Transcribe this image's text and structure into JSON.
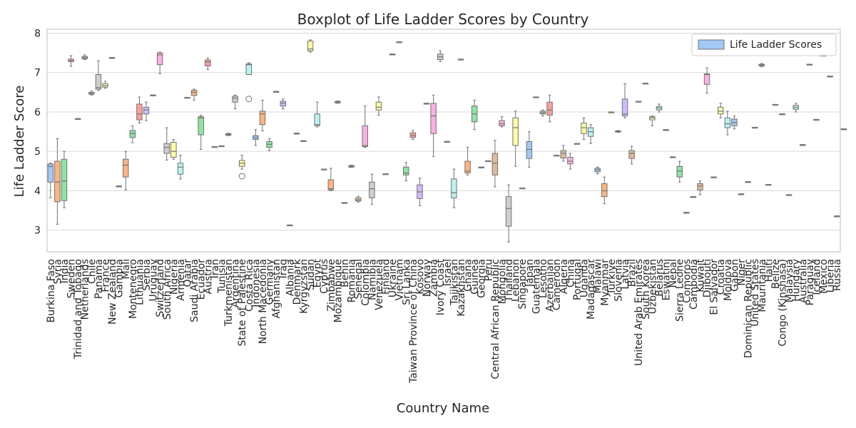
{
  "chart_data": {
    "type": "boxplot",
    "title": "Boxplot of Life Ladder Scores by Country",
    "xlabel": "Country Name",
    "ylabel": "Life Ladder Score",
    "ylim": [
      2.45,
      8.1
    ],
    "yticks": [
      3,
      4,
      5,
      6,
      7,
      8
    ],
    "grid": true,
    "legend": {
      "label": "Life Ladder Scores",
      "position": "top-right"
    },
    "palette": [
      "#a1c9f4",
      "#ffb482",
      "#8de5a1",
      "#ff9f9b",
      "#d0bbff",
      "#debb9b",
      "#fab0e4",
      "#cfcfcf",
      "#fffea3",
      "#b9f2f0"
    ],
    "edge_color": "#737373",
    "categories": [
      "Burkina Faso",
      "Syria",
      "India",
      "Sweden",
      "Trinidad and Tobago",
      "Netherlands",
      "Chile",
      "Panama",
      "France",
      "New Zealand",
      "Gambia",
      "Mali",
      "Montenegro",
      "Lithuania",
      "Serbia",
      "Uruguay",
      "Switzerland",
      "South Africa",
      "Nigeria",
      "Armenia",
      "Qatar",
      "Saudi Arabia",
      "Ecuador",
      "Austria",
      "Iran",
      "Tunisia",
      "Turkmenistan",
      "Argentina",
      "State of Palestine",
      "Costa Rica",
      "Indonesia",
      "North Macedonia",
      "Germany",
      "Afghanistan",
      "Iraq",
      "Albania",
      "Denmark",
      "Kyrgyzstan",
      "Sudan",
      "Egypt",
      "Cyprus",
      "Zimbabwe",
      "Mozambique",
      "Benin",
      "Romania",
      "Senegal",
      "Colombia",
      "Namibia",
      "Venezuela",
      "Finland",
      "Ukraine",
      "Vietnam",
      "Sri Lanka",
      "Taiwan Province of China",
      "Kosovo",
      "Norway",
      "Zambia",
      "Ivory Coast",
      "Israel",
      "Tajikistan",
      "Kazakhstan",
      "Ghana",
      "Guinea",
      "Georgia",
      "Peru",
      "Central African Republic",
      "Mongolia",
      "Thailand",
      "Lebanon",
      "Singapore",
      "Japan",
      "Guatemala",
      "Lesotho",
      "Azerbaijan",
      "Cameroon",
      "Algeria",
      "China",
      "Portugal",
      "Uganda",
      "Madagascar",
      "Malawi",
      "Myanmar",
      "Türkiye",
      "Slovenia",
      "Latvia",
      "Brazil",
      "United Arab Emirates",
      "South Korea",
      "Uzbekistan",
      "Belarus",
      "Eswatini",
      "Nepal",
      "Sierra Leone",
      "Comoros",
      "Cambodia",
      "Kuwait",
      "Djibouti",
      "El Salvador",
      "Croatia",
      "Moldova",
      "Gabon",
      "Niger",
      "Dominican Republic",
      "United States",
      "Mauritania",
      "Haiti",
      "Belize",
      "Congo (Kinshasa)",
      "Malaysia",
      "Hungary",
      "Australia",
      "Paraguay",
      "Iceland",
      "Mexico",
      "Liberia",
      "Russia"
    ],
    "boxes": [
      {
        "q1": 4.22,
        "med": 4.62,
        "q3": 4.68,
        "wlo": 3.82,
        "whi": 4.7,
        "outliers": []
      },
      {
        "q1": 3.72,
        "med": 4.22,
        "q3": 4.75,
        "wlo": 3.15,
        "whi": 5.32,
        "outliers": []
      },
      {
        "q1": 3.75,
        "med": 4.25,
        "q3": 4.8,
        "wlo": 3.57,
        "whi": 5.0,
        "outliers": []
      },
      {
        "q1": 7.28,
        "med": 7.3,
        "q3": 7.34,
        "wlo": 7.16,
        "whi": 7.43,
        "outliers": []
      },
      {
        "q1": 5.83,
        "med": 5.83,
        "q3": 5.83,
        "wlo": 5.83,
        "whi": 5.83,
        "outliers": []
      },
      {
        "q1": 7.35,
        "med": 7.38,
        "q3": 7.41,
        "wlo": 7.33,
        "whi": 7.45,
        "outliers": []
      },
      {
        "q1": 6.45,
        "med": 6.47,
        "q3": 6.5,
        "wlo": 6.43,
        "whi": 6.53,
        "outliers": []
      },
      {
        "q1": 6.58,
        "med": 6.62,
        "q3": 6.95,
        "wlo": 6.55,
        "whi": 7.3,
        "outliers": []
      },
      {
        "q1": 6.63,
        "med": 6.67,
        "q3": 6.72,
        "wlo": 6.6,
        "whi": 6.78,
        "outliers": []
      },
      {
        "q1": 7.38,
        "med": 7.38,
        "q3": 7.38,
        "wlo": 7.38,
        "whi": 7.38,
        "outliers": []
      },
      {
        "q1": 4.12,
        "med": 4.12,
        "q3": 4.12,
        "wlo": 4.12,
        "whi": 4.12,
        "outliers": []
      },
      {
        "q1": 4.35,
        "med": 4.65,
        "q3": 4.8,
        "wlo": 4.02,
        "whi": 5.0,
        "outliers": []
      },
      {
        "q1": 5.35,
        "med": 5.45,
        "q3": 5.53,
        "wlo": 5.22,
        "whi": 5.65,
        "outliers": []
      },
      {
        "q1": 5.8,
        "med": 5.95,
        "q3": 6.2,
        "wlo": 5.72,
        "whi": 6.38,
        "outliers": []
      },
      {
        "q1": 5.95,
        "med": 6.05,
        "q3": 6.12,
        "wlo": 5.78,
        "whi": 6.25,
        "outliers": []
      },
      {
        "q1": 6.43,
        "med": 6.43,
        "q3": 6.43,
        "wlo": 6.43,
        "whi": 6.43,
        "outliers": []
      },
      {
        "q1": 7.2,
        "med": 7.45,
        "q3": 7.5,
        "wlo": 6.97,
        "whi": 7.52,
        "outliers": []
      },
      {
        "q1": 4.95,
        "med": 5.1,
        "q3": 5.2,
        "wlo": 4.78,
        "whi": 5.6,
        "outliers": []
      },
      {
        "q1": 4.85,
        "med": 5.0,
        "q3": 5.23,
        "wlo": 4.8,
        "whi": 5.3,
        "outliers": []
      },
      {
        "q1": 4.42,
        "med": 4.6,
        "q3": 4.7,
        "wlo": 4.3,
        "whi": 4.9,
        "outliers": []
      },
      {
        "q1": 6.37,
        "med": 6.37,
        "q3": 6.37,
        "wlo": 6.37,
        "whi": 6.37,
        "outliers": []
      },
      {
        "q1": 6.42,
        "med": 6.5,
        "q3": 6.55,
        "wlo": 6.3,
        "whi": 6.58,
        "outliers": []
      },
      {
        "q1": 5.42,
        "med": 5.85,
        "q3": 5.88,
        "wlo": 5.05,
        "whi": 5.92,
        "outliers": []
      },
      {
        "q1": 7.17,
        "med": 7.27,
        "q3": 7.32,
        "wlo": 7.08,
        "whi": 7.37,
        "outliers": []
      },
      {
        "q1": 5.12,
        "med": 5.12,
        "q3": 5.12,
        "wlo": 5.12,
        "whi": 5.12,
        "outliers": []
      },
      {
        "q1": 5.14,
        "med": 5.14,
        "q3": 5.14,
        "wlo": 5.14,
        "whi": 5.14,
        "outliers": []
      },
      {
        "q1": 5.41,
        "med": 5.43,
        "q3": 5.45,
        "wlo": 5.4,
        "whi": 5.46,
        "outliers": []
      },
      {
        "q1": 6.25,
        "med": 6.35,
        "q3": 6.4,
        "wlo": 6.08,
        "whi": 6.43,
        "outliers": []
      },
      {
        "q1": 4.62,
        "med": 4.7,
        "q3": 4.77,
        "wlo": 4.55,
        "whi": 4.9,
        "outliers": [
          4.37
        ]
      },
      {
        "q1": 6.95,
        "med": 7.2,
        "q3": 7.22,
        "wlo": 6.95,
        "whi": 7.25,
        "outliers": [
          6.33
        ]
      },
      {
        "q1": 5.3,
        "med": 5.35,
        "q3": 5.4,
        "wlo": 5.15,
        "whi": 5.55,
        "outliers": []
      },
      {
        "q1": 5.68,
        "med": 5.95,
        "q3": 6.02,
        "wlo": 5.52,
        "whi": 6.3,
        "outliers": []
      },
      {
        "q1": 5.1,
        "med": 5.18,
        "q3": 5.25,
        "wlo": 5.02,
        "whi": 5.32,
        "outliers": []
      },
      {
        "q1": 6.52,
        "med": 6.52,
        "q3": 6.52,
        "wlo": 6.52,
        "whi": 6.52,
        "outliers": []
      },
      {
        "q1": 6.15,
        "med": 6.22,
        "q3": 6.27,
        "wlo": 6.08,
        "whi": 6.33,
        "outliers": []
      },
      {
        "q1": 3.13,
        "med": 3.13,
        "q3": 3.13,
        "wlo": 3.13,
        "whi": 3.13,
        "outliers": []
      },
      {
        "q1": 5.46,
        "med": 5.46,
        "q3": 5.46,
        "wlo": 5.46,
        "whi": 5.46,
        "outliers": []
      },
      {
        "q1": 5.27,
        "med": 5.27,
        "q3": 5.27,
        "wlo": 5.27,
        "whi": 5.27,
        "outliers": []
      },
      {
        "q1": 7.55,
        "med": 7.6,
        "q3": 7.8,
        "wlo": 7.52,
        "whi": 7.83,
        "outliers": []
      },
      {
        "q1": 5.65,
        "med": 5.68,
        "q3": 5.95,
        "wlo": 5.62,
        "whi": 6.25,
        "outliers": []
      },
      {
        "q1": 4.55,
        "med": 4.55,
        "q3": 4.55,
        "wlo": 4.55,
        "whi": 4.55,
        "outliers": []
      },
      {
        "q1": 4.02,
        "med": 4.05,
        "q3": 4.28,
        "wlo": 4.0,
        "whi": 4.57,
        "outliers": []
      },
      {
        "q1": 6.23,
        "med": 6.25,
        "q3": 6.27,
        "wlo": 6.22,
        "whi": 6.28,
        "outliers": []
      },
      {
        "q1": 3.7,
        "med": 3.7,
        "q3": 3.7,
        "wlo": 3.7,
        "whi": 3.7,
        "outliers": []
      },
      {
        "q1": 4.6,
        "med": 4.62,
        "q3": 4.64,
        "wlo": 4.59,
        "whi": 4.65,
        "outliers": []
      },
      {
        "q1": 3.74,
        "med": 3.77,
        "q3": 3.82,
        "wlo": 3.71,
        "whi": 3.86,
        "outliers": []
      },
      {
        "q1": 5.12,
        "med": 5.15,
        "q3": 5.65,
        "wlo": 5.1,
        "whi": 6.15,
        "outliers": []
      },
      {
        "q1": 3.82,
        "med": 4.05,
        "q3": 4.22,
        "wlo": 3.65,
        "whi": 4.42,
        "outliers": []
      },
      {
        "q1": 6.05,
        "med": 6.12,
        "q3": 6.25,
        "wlo": 5.92,
        "whi": 6.38,
        "outliers": []
      },
      {
        "q1": 4.43,
        "med": 4.43,
        "q3": 4.43,
        "wlo": 4.43,
        "whi": 4.43,
        "outliers": []
      },
      {
        "q1": 7.47,
        "med": 7.47,
        "q3": 7.47,
        "wlo": 7.47,
        "whi": 7.47,
        "outliers": []
      },
      {
        "q1": 7.78,
        "med": 7.78,
        "q3": 7.78,
        "wlo": 7.78,
        "whi": 7.78,
        "outliers": []
      },
      {
        "q1": 4.4,
        "med": 4.45,
        "q3": 4.6,
        "wlo": 4.25,
        "whi": 4.72,
        "outliers": []
      },
      {
        "q1": 5.35,
        "med": 5.4,
        "q3": 5.47,
        "wlo": 5.3,
        "whi": 5.53,
        "outliers": []
      },
      {
        "q1": 3.8,
        "med": 3.97,
        "q3": 4.15,
        "wlo": 3.62,
        "whi": 4.32,
        "outliers": []
      },
      {
        "q1": 6.22,
        "med": 6.22,
        "q3": 6.22,
        "wlo": 6.22,
        "whi": 6.22,
        "outliers": []
      },
      {
        "q1": 5.45,
        "med": 5.9,
        "q3": 6.22,
        "wlo": 4.87,
        "whi": 6.43,
        "outliers": []
      },
      {
        "q1": 7.33,
        "med": 7.4,
        "q3": 7.47,
        "wlo": 7.28,
        "whi": 7.55,
        "outliers": []
      },
      {
        "q1": 5.25,
        "med": 5.25,
        "q3": 5.25,
        "wlo": 5.25,
        "whi": 5.25,
        "outliers": []
      },
      {
        "q1": 3.82,
        "med": 3.95,
        "q3": 4.3,
        "wlo": 3.57,
        "whi": 4.55,
        "outliers": []
      },
      {
        "q1": 7.34,
        "med": 7.34,
        "q3": 7.34,
        "wlo": 7.34,
        "whi": 7.34,
        "outliers": []
      },
      {
        "q1": 4.45,
        "med": 4.5,
        "q3": 4.75,
        "wlo": 4.4,
        "whi": 5.1,
        "outliers": []
      },
      {
        "q1": 5.75,
        "med": 5.95,
        "q3": 6.15,
        "wlo": 5.55,
        "whi": 6.3,
        "outliers": []
      },
      {
        "q1": 4.6,
        "med": 4.6,
        "q3": 4.6,
        "wlo": 4.6,
        "whi": 4.6,
        "outliers": []
      },
      {
        "q1": 4.76,
        "med": 4.76,
        "q3": 4.76,
        "wlo": 4.76,
        "whi": 4.76,
        "outliers": []
      },
      {
        "q1": 4.4,
        "med": 4.7,
        "q3": 4.95,
        "wlo": 4.1,
        "whi": 5.28,
        "outliers": []
      },
      {
        "q1": 5.65,
        "med": 5.7,
        "q3": 5.78,
        "wlo": 5.62,
        "whi": 5.88,
        "outliers": []
      },
      {
        "q1": 3.1,
        "med": 3.55,
        "q3": 3.85,
        "wlo": 2.7,
        "whi": 4.15,
        "outliers": []
      },
      {
        "q1": 5.15,
        "med": 5.6,
        "q3": 5.85,
        "wlo": 4.62,
        "whi": 6.02,
        "outliers": []
      },
      {
        "q1": 4.07,
        "med": 4.07,
        "q3": 4.07,
        "wlo": 4.07,
        "whi": 4.07,
        "outliers": []
      },
      {
        "q1": 4.82,
        "med": 5.05,
        "q3": 5.25,
        "wlo": 4.6,
        "whi": 5.5,
        "outliers": []
      },
      {
        "q1": 6.38,
        "med": 6.38,
        "q3": 6.38,
        "wlo": 6.38,
        "whi": 6.38,
        "outliers": []
      },
      {
        "q1": 5.95,
        "med": 5.98,
        "q3": 6.02,
        "wlo": 5.9,
        "whi": 6.05,
        "outliers": []
      },
      {
        "q1": 5.92,
        "med": 6.05,
        "q3": 6.25,
        "wlo": 5.75,
        "whi": 6.43,
        "outliers": []
      },
      {
        "q1": 4.9,
        "med": 4.9,
        "q3": 4.9,
        "wlo": 4.9,
        "whi": 4.9,
        "outliers": []
      },
      {
        "q1": 4.83,
        "med": 4.95,
        "q3": 5.02,
        "wlo": 4.75,
        "whi": 5.15,
        "outliers": []
      },
      {
        "q1": 4.68,
        "med": 4.75,
        "q3": 4.85,
        "wlo": 4.55,
        "whi": 4.95,
        "outliers": []
      },
      {
        "q1": 5.2,
        "med": 5.2,
        "q3": 5.2,
        "wlo": 5.2,
        "whi": 5.2,
        "outliers": []
      },
      {
        "q1": 5.45,
        "med": 5.6,
        "q3": 5.72,
        "wlo": 5.3,
        "whi": 5.85,
        "outliers": []
      },
      {
        "q1": 5.38,
        "med": 5.5,
        "q3": 5.6,
        "wlo": 5.2,
        "whi": 5.68,
        "outliers": []
      },
      {
        "q1": 4.48,
        "med": 4.53,
        "q3": 4.57,
        "wlo": 4.43,
        "whi": 4.6,
        "outliers": []
      },
      {
        "q1": 3.85,
        "med": 4.0,
        "q3": 4.18,
        "wlo": 3.67,
        "whi": 4.35,
        "outliers": []
      },
      {
        "q1": 6.0,
        "med": 6.0,
        "q3": 6.0,
        "wlo": 6.0,
        "whi": 6.0,
        "outliers": []
      },
      {
        "q1": 5.49,
        "med": 5.5,
        "q3": 5.52,
        "wlo": 5.48,
        "whi": 5.53,
        "outliers": []
      },
      {
        "q1": 5.9,
        "med": 5.95,
        "q3": 6.33,
        "wlo": 5.85,
        "whi": 6.72,
        "outliers": []
      },
      {
        "q1": 4.82,
        "med": 4.95,
        "q3": 5.02,
        "wlo": 4.68,
        "whi": 5.13,
        "outliers": []
      },
      {
        "q1": 6.27,
        "med": 6.27,
        "q3": 6.27,
        "wlo": 6.27,
        "whi": 6.27,
        "outliers": []
      },
      {
        "q1": 6.73,
        "med": 6.73,
        "q3": 6.73,
        "wlo": 6.73,
        "whi": 6.73,
        "outliers": []
      },
      {
        "q1": 5.8,
        "med": 5.85,
        "q3": 5.88,
        "wlo": 5.65,
        "whi": 5.9,
        "outliers": []
      },
      {
        "q1": 6.05,
        "med": 6.1,
        "q3": 6.14,
        "wlo": 6.0,
        "whi": 6.2,
        "outliers": []
      },
      {
        "q1": 5.55,
        "med": 5.55,
        "q3": 5.55,
        "wlo": 5.55,
        "whi": 5.55,
        "outliers": []
      },
      {
        "q1": 4.86,
        "med": 4.86,
        "q3": 4.86,
        "wlo": 4.86,
        "whi": 4.86,
        "outliers": []
      },
      {
        "q1": 4.35,
        "med": 4.5,
        "q3": 4.62,
        "wlo": 4.22,
        "whi": 4.75,
        "outliers": []
      },
      {
        "q1": 3.45,
        "med": 3.45,
        "q3": 3.45,
        "wlo": 3.45,
        "whi": 3.45,
        "outliers": []
      },
      {
        "q1": 3.85,
        "med": 3.85,
        "q3": 3.85,
        "wlo": 3.85,
        "whi": 3.85,
        "outliers": []
      },
      {
        "q1": 4.02,
        "med": 4.12,
        "q3": 4.18,
        "wlo": 3.9,
        "whi": 4.25,
        "outliers": []
      },
      {
        "q1": 6.7,
        "med": 6.95,
        "q3": 6.97,
        "wlo": 6.48,
        "whi": 7.12,
        "outliers": []
      },
      {
        "q1": 4.35,
        "med": 4.35,
        "q3": 4.35,
        "wlo": 4.35,
        "whi": 4.35,
        "outliers": []
      },
      {
        "q1": 5.95,
        "med": 6.02,
        "q3": 6.12,
        "wlo": 5.85,
        "whi": 6.22,
        "outliers": []
      },
      {
        "q1": 5.6,
        "med": 5.7,
        "q3": 5.85,
        "wlo": 5.42,
        "whi": 6.02,
        "outliers": []
      },
      {
        "q1": 5.65,
        "med": 5.73,
        "q3": 5.82,
        "wlo": 5.57,
        "whi": 5.9,
        "outliers": []
      },
      {
        "q1": 3.92,
        "med": 3.92,
        "q3": 3.92,
        "wlo": 3.92,
        "whi": 3.92,
        "outliers": []
      },
      {
        "q1": 4.23,
        "med": 4.23,
        "q3": 4.23,
        "wlo": 4.23,
        "whi": 4.23,
        "outliers": []
      },
      {
        "q1": 5.61,
        "med": 5.61,
        "q3": 5.61,
        "wlo": 5.61,
        "whi": 5.61,
        "outliers": []
      },
      {
        "q1": 7.17,
        "med": 7.19,
        "q3": 7.21,
        "wlo": 7.15,
        "whi": 7.23,
        "outliers": []
      },
      {
        "q1": 4.16,
        "med": 4.16,
        "q3": 4.16,
        "wlo": 4.16,
        "whi": 4.16,
        "outliers": []
      },
      {
        "q1": 6.19,
        "med": 6.19,
        "q3": 6.19,
        "wlo": 6.19,
        "whi": 6.19,
        "outliers": []
      },
      {
        "q1": 5.95,
        "med": 5.95,
        "q3": 5.95,
        "wlo": 5.95,
        "whi": 5.95,
        "outliers": []
      },
      {
        "q1": 3.9,
        "med": 3.9,
        "q3": 3.9,
        "wlo": 3.9,
        "whi": 3.9,
        "outliers": []
      },
      {
        "q1": 6.07,
        "med": 6.12,
        "q3": 6.17,
        "wlo": 6.0,
        "whi": 6.22,
        "outliers": []
      },
      {
        "q1": 5.17,
        "med": 5.17,
        "q3": 5.17,
        "wlo": 5.17,
        "whi": 5.17,
        "outliers": []
      },
      {
        "q1": 7.21,
        "med": 7.21,
        "q3": 7.21,
        "wlo": 7.21,
        "whi": 7.21,
        "outliers": []
      },
      {
        "q1": 5.81,
        "med": 5.81,
        "q3": 5.81,
        "wlo": 5.81,
        "whi": 5.81,
        "outliers": []
      },
      {
        "q1": 7.44,
        "med": 7.44,
        "q3": 7.44,
        "wlo": 7.44,
        "whi": 7.44,
        "outliers": []
      },
      {
        "q1": 6.91,
        "med": 6.91,
        "q3": 6.91,
        "wlo": 6.91,
        "whi": 6.91,
        "outliers": []
      },
      {
        "q1": 3.36,
        "med": 3.36,
        "q3": 3.36,
        "wlo": 3.36,
        "whi": 3.36,
        "outliers": []
      },
      {
        "q1": 5.57,
        "med": 5.57,
        "q3": 5.57,
        "wlo": 5.57,
        "whi": 5.57,
        "outliers": []
      }
    ]
  }
}
